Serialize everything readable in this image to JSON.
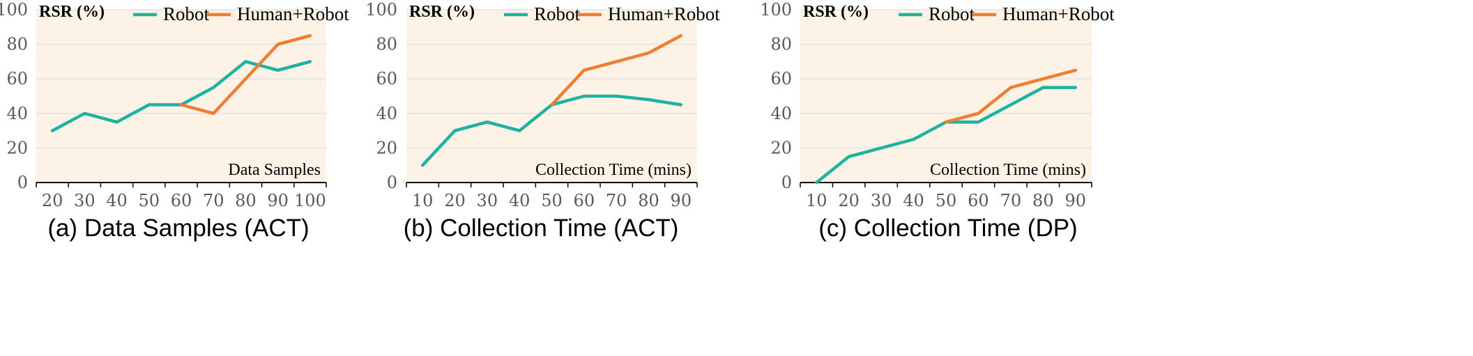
{
  "colors": {
    "robot": "#20b2a0",
    "human_robot": "#ef7d32",
    "plot_bg": "#fdf2e6",
    "grid": "#e3e3e3"
  },
  "chart_data": [
    {
      "type": "line",
      "caption": "(a)  Data Samples (ACT)",
      "xlabel": "Data Samples",
      "ylabel": "RSR (%)",
      "x": [
        20,
        30,
        40,
        50,
        60,
        70,
        80,
        90,
        100
      ],
      "ylim": [
        0,
        100
      ],
      "yticks": [
        0,
        20,
        40,
        60,
        80,
        100
      ],
      "grid": true,
      "legend_position": "top-right",
      "series": [
        {
          "name": "Robot",
          "x": [
            20,
            30,
            40,
            50,
            60,
            70,
            80,
            90,
            100
          ],
          "values": [
            30,
            40,
            35,
            45,
            45,
            55,
            70,
            65,
            70
          ]
        },
        {
          "name": "Human+Robot",
          "x": [
            60,
            70,
            80,
            90,
            100
          ],
          "values": [
            45,
            40,
            60,
            80,
            85
          ]
        }
      ]
    },
    {
      "type": "line",
      "caption": "(b) Collection Time (ACT)",
      "xlabel": "Collection Time (mins)",
      "ylabel": "RSR (%)",
      "x": [
        10,
        20,
        30,
        40,
        50,
        60,
        70,
        80,
        90
      ],
      "ylim": [
        0,
        100
      ],
      "yticks": [
        0,
        20,
        40,
        60,
        80,
        100
      ],
      "grid": true,
      "legend_position": "top-right",
      "series": [
        {
          "name": "Robot",
          "x": [
            10,
            20,
            30,
            40,
            50,
            60,
            70,
            80,
            90
          ],
          "values": [
            10,
            30,
            35,
            30,
            45,
            50,
            50,
            48,
            45
          ]
        },
        {
          "name": "Human+Robot",
          "x": [
            50,
            60,
            70,
            80,
            90
          ],
          "values": [
            45,
            65,
            70,
            75,
            85
          ]
        }
      ]
    },
    {
      "type": "line",
      "caption": "(c) Collection Time (DP)",
      "xlabel": "Collection Time (mins)",
      "ylabel": "RSR (%)",
      "x": [
        10,
        20,
        30,
        40,
        50,
        60,
        70,
        80,
        90
      ],
      "ylim": [
        0,
        100
      ],
      "yticks": [
        0,
        20,
        40,
        60,
        80,
        100
      ],
      "grid": true,
      "legend_position": "top-right",
      "series": [
        {
          "name": "Robot",
          "x": [
            10,
            20,
            30,
            40,
            50,
            60,
            70,
            80,
            90
          ],
          "values": [
            0,
            15,
            20,
            25,
            35,
            35,
            45,
            55,
            55
          ]
        },
        {
          "name": "Human+Robot",
          "x": [
            50,
            60,
            70,
            80,
            90
          ],
          "values": [
            35,
            40,
            55,
            60,
            65
          ]
        }
      ]
    }
  ]
}
